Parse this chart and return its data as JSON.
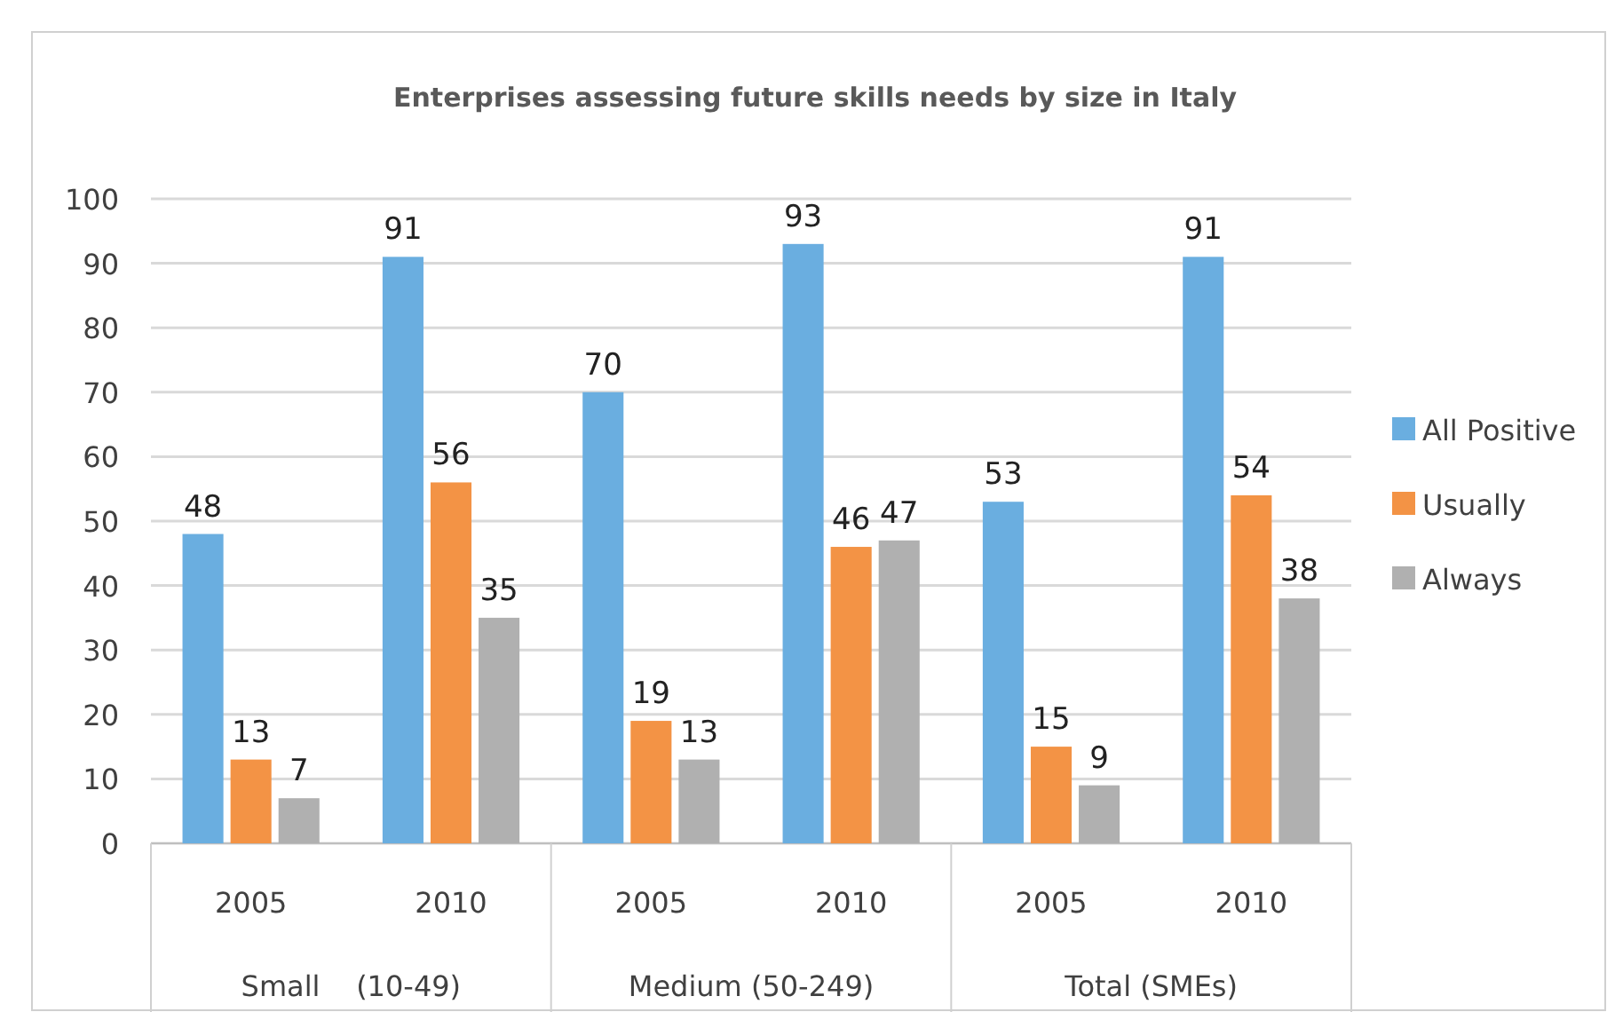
{
  "chart_data": {
    "type": "bar",
    "title": "Enterprises assessing future skills needs by size in Italy",
    "categories": [
      "2005",
      "2010",
      "2005",
      "2010",
      "2005",
      "2010"
    ],
    "annotations": [
      "Small    (10-49)",
      "Medium (50-249)",
      "Total (SMEs)"
    ],
    "series": [
      {
        "name": "All Positive",
        "color": "#6aaee0",
        "values": [
          48,
          91,
          70,
          93,
          53,
          91
        ]
      },
      {
        "name": "Usually",
        "color": "#f39345",
        "values": [
          13,
          56,
          19,
          46,
          15,
          54
        ]
      },
      {
        "name": "Always",
        "color": "#b0b0b0",
        "values": [
          7,
          35,
          13,
          47,
          9,
          38
        ]
      }
    ],
    "ylim": [
      0,
      100
    ],
    "yticks": [
      0,
      10,
      20,
      30,
      40,
      50,
      60,
      70,
      80,
      90,
      100
    ],
    "grid": "y",
    "legend": "right",
    "data_labels": true
  }
}
